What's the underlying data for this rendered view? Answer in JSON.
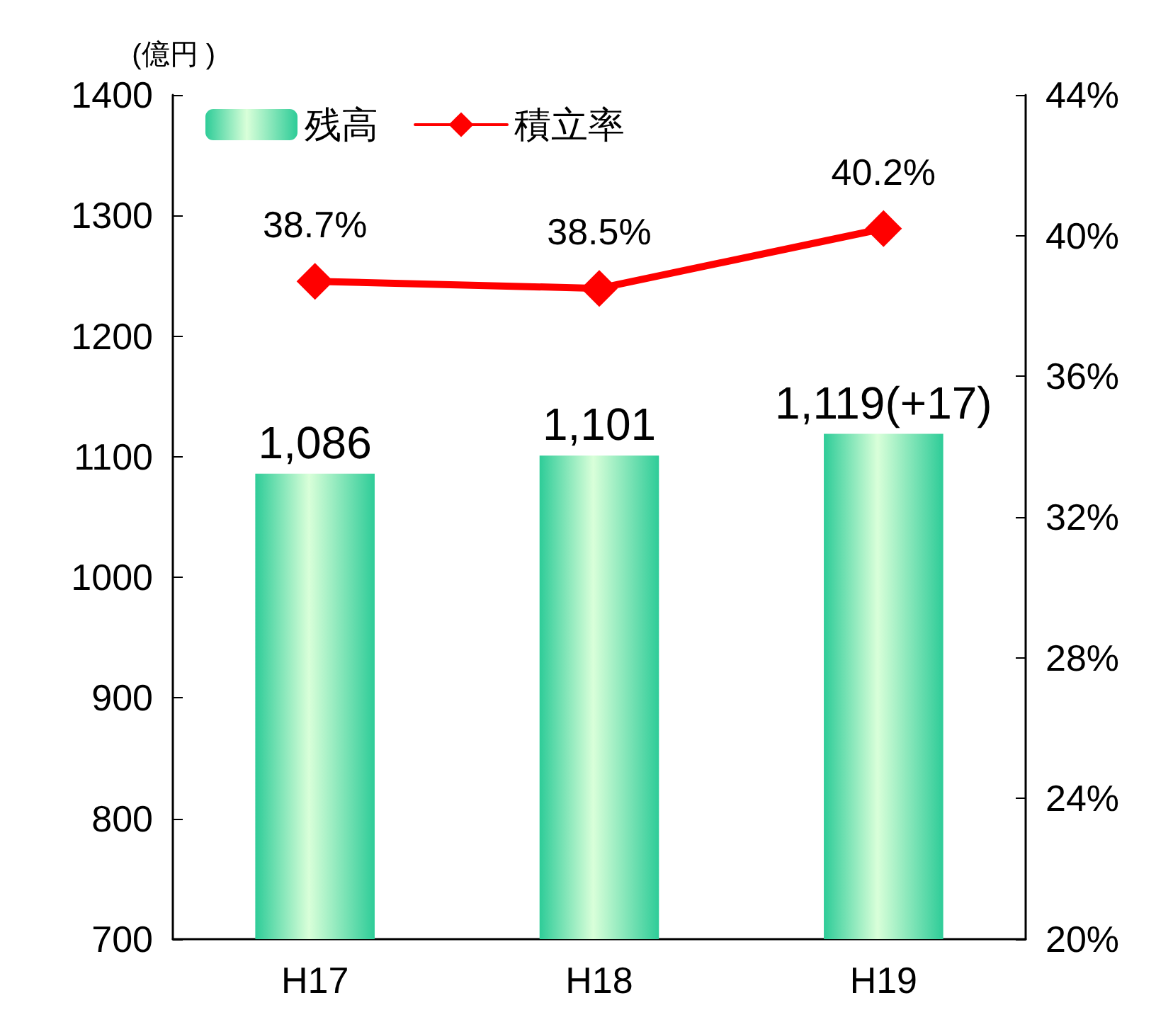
{
  "chart_data": {
    "type": "bar",
    "ylabel": "(億円 )",
    "categories": [
      "H17",
      "H18",
      "H19"
    ],
    "series": [
      {
        "name": "残高",
        "color": "#2ecc98",
        "values": [
          1086,
          1101,
          1119
        ],
        "value_labels": [
          "1,086",
          "1,101",
          "1,119(+17)"
        ]
      },
      {
        "name": "積立率",
        "type": "line",
        "axis": "y2",
        "color": "#ff0000",
        "values": [
          38.7,
          38.5,
          40.2
        ],
        "value_labels": [
          "38.7%",
          "38.5%",
          "40.2%"
        ]
      }
    ],
    "ylim": [
      700,
      1400
    ],
    "yticks": [
      700,
      800,
      900,
      1000,
      1100,
      1200,
      1300,
      1400
    ],
    "y2lim": [
      20,
      44
    ],
    "y2ticks": [
      {
        "value": 20,
        "label": "20%"
      },
      {
        "value": 24,
        "label": "24%"
      },
      {
        "value": 28,
        "label": "28%"
      },
      {
        "value": 32,
        "label": "32%"
      },
      {
        "value": 36,
        "label": "36%"
      },
      {
        "value": 40,
        "label": "40%"
      },
      {
        "value": 44,
        "label": "44%"
      }
    ],
    "legend": "top left",
    "grid": false,
    "marker": "diamond",
    "line_style": "solid"
  }
}
